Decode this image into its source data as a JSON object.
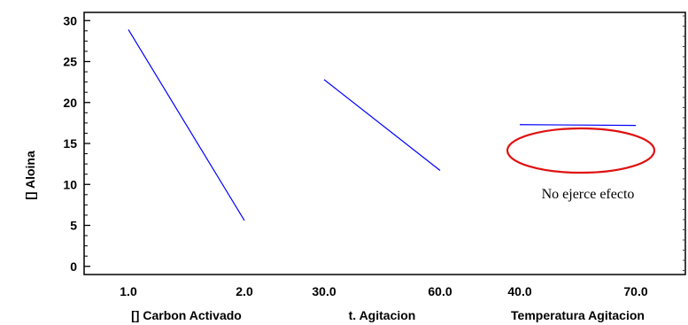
{
  "chart_data": {
    "type": "line",
    "ylabel": "[] Aloina",
    "ylim": [
      -1,
      31
    ],
    "yticks": [
      0,
      5,
      10,
      15,
      20,
      25,
      30
    ],
    "panels": [
      {
        "factor": "[] Carbon Activado",
        "x_low": "1.0",
        "x_high": "2.0",
        "y_low": 28.9,
        "y_high": 5.6
      },
      {
        "factor": "t. Agitacion",
        "x_low": "30.0",
        "x_high": "60.0",
        "y_low": 22.8,
        "y_high": 11.7
      },
      {
        "factor": "Temperatura Agitacion",
        "x_low": "40.0",
        "x_high": "70.0",
        "y_low": 17.3,
        "y_high": 17.2
      }
    ],
    "line_color": "#0000ff",
    "annotation": {
      "text": "No ejerce efecto",
      "ellipse_color": "#e01010"
    },
    "grid": false
  }
}
